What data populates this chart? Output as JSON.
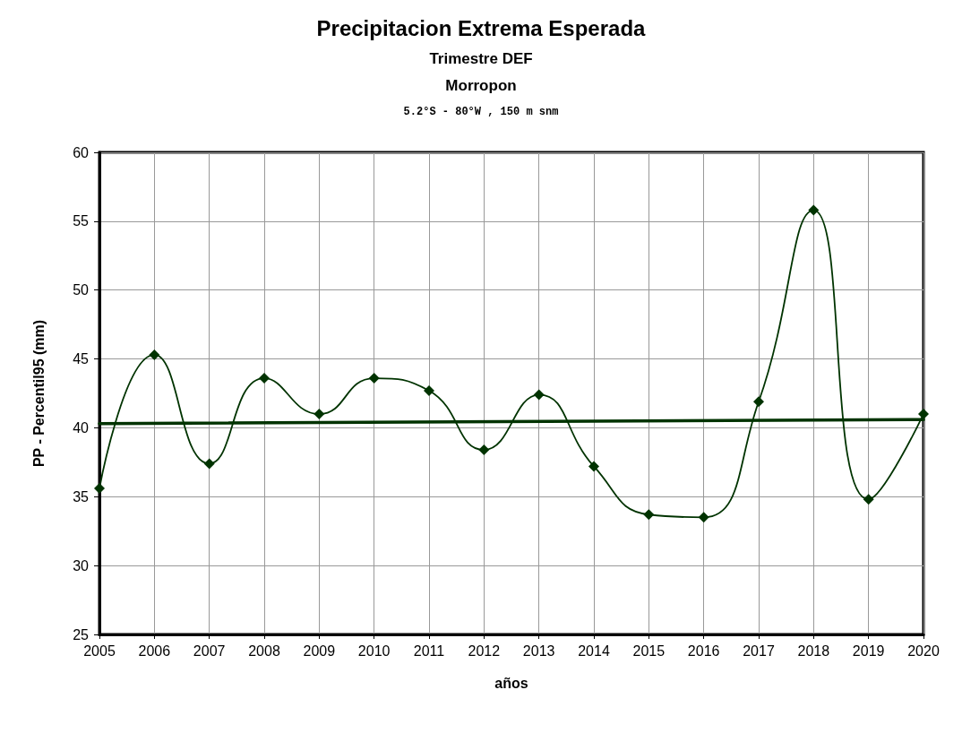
{
  "chart_data": {
    "type": "line",
    "title": "Precipitacion Extrema Esperada",
    "subtitle": "Trimestre DEF\nMorropon\n5.2°S - 80°W , 150 m snm",
    "xlabel": "años",
    "ylabel": "PP - Percentil95 (mm)",
    "categories": [
      "2005",
      "2006",
      "2007",
      "2008",
      "2009",
      "2010",
      "2011",
      "2012",
      "2013",
      "2014",
      "2015",
      "2016",
      "2017",
      "2018",
      "2019",
      "2020"
    ],
    "series": [
      {
        "color": "#003300",
        "marker": "diamond",
        "values": [
          35.6,
          45.3,
          37.4,
          43.6,
          41.0,
          43.6,
          42.7,
          38.4,
          42.4,
          37.2,
          33.7,
          33.5,
          41.9,
          55.8,
          34.8,
          41.0
        ]
      },
      {
        "color": "#003300",
        "marker": "none",
        "values": [
          40.3,
          null,
          null,
          null,
          null,
          null,
          null,
          null,
          null,
          null,
          null,
          null,
          null,
          null,
          null,
          40.6
        ]
      }
    ],
    "ylim": [
      25,
      60
    ],
    "yticks": [
      25,
      30,
      35,
      40,
      45,
      50,
      55,
      60
    ],
    "grid": true,
    "line_style": "solid"
  }
}
